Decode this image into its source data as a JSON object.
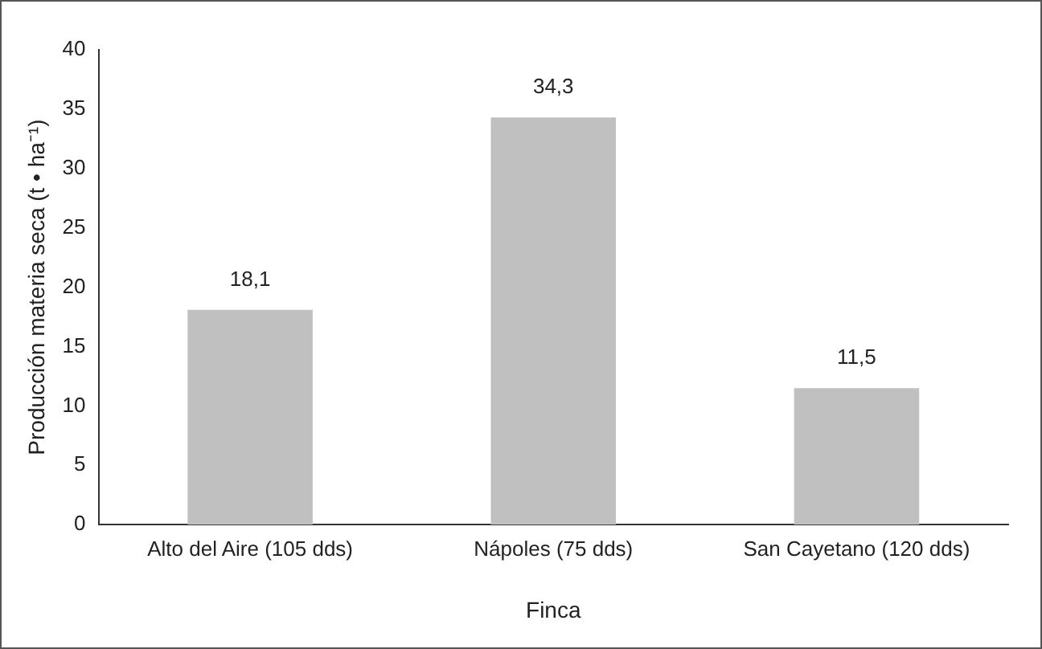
{
  "chart_data": {
    "type": "bar",
    "xlabel": "Finca",
    "ylabel": "Producción materia seca (t • ha⁻¹)",
    "categories": [
      "Alto del Aire (105 dds)",
      "Nápoles (75 dds)",
      "San Cayetano (120 dds)"
    ],
    "values": [
      18.1,
      34.3,
      11.5
    ],
    "value_labels": [
      "18,1",
      "34,3",
      "11,5"
    ],
    "color": "#c0c0c0",
    "ylim": [
      0,
      40
    ],
    "yticks": [
      0,
      5,
      10,
      15,
      20,
      25,
      30,
      35,
      40
    ],
    "grid": false,
    "legend": false
  }
}
